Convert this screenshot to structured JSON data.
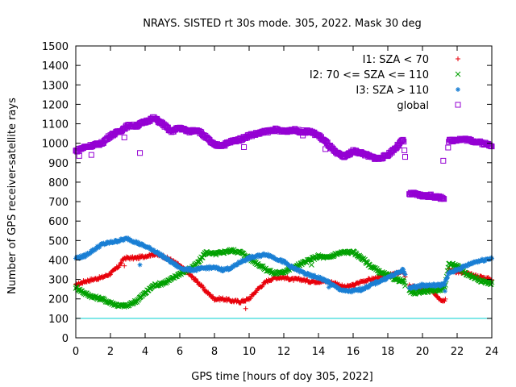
{
  "chart_data": {
    "type": "scatter",
    "title": "NRAYS. SISTED rt 30s mode. 305, 2022. Mask 30 deg",
    "xlabel": "GPS time [hours of doy 305, 2022]",
    "ylabel": "Number of GPS receiver-satellite rays",
    "xlim": [
      0,
      24
    ],
    "ylim": [
      0,
      1500
    ],
    "xticks": [
      0,
      2,
      4,
      6,
      8,
      10,
      12,
      14,
      16,
      18,
      20,
      22,
      24
    ],
    "yticks": [
      0,
      100,
      200,
      300,
      400,
      500,
      600,
      700,
      800,
      900,
      1000,
      1100,
      1200,
      1300,
      1400,
      1500
    ],
    "grid": false,
    "legend_position": "top-right",
    "reference_line": {
      "y": 100,
      "color": "#00d0d0"
    },
    "gap": [
      19.0,
      19.2
    ],
    "series": [
      {
        "name": "I1: SZA < 70",
        "marker": "plus",
        "color": "#e8000b",
        "x": [
          0,
          0.5,
          1,
          1.5,
          2,
          2.5,
          2.8,
          3.5,
          4,
          4.5,
          5,
          5.5,
          6,
          6.5,
          7,
          7.5,
          8,
          8.5,
          9,
          9.5,
          10,
          10.5,
          11,
          11.5,
          12,
          12.5,
          13,
          13.5,
          14,
          14.5,
          15,
          15.5,
          16,
          16.5,
          17,
          17.5,
          18,
          18.5,
          18.9,
          19.2,
          19.5,
          20,
          20.5,
          21,
          21.3,
          21.5,
          22,
          22.5,
          23,
          23.5,
          24
        ],
        "y": [
          270,
          290,
          300,
          310,
          330,
          370,
          410,
          410,
          420,
          430,
          420,
          400,
          370,
          330,
          290,
          240,
          200,
          200,
          190,
          185,
          200,
          250,
          290,
          310,
          310,
          300,
          300,
          290,
          290,
          290,
          280,
          260,
          270,
          290,
          300,
          310,
          320,
          330,
          340,
          270,
          260,
          250,
          250,
          200,
          190,
          350,
          340,
          330,
          320,
          310,
          300
        ]
      },
      {
        "name": "I2: 70 <= SZA <= 110",
        "marker": "cross",
        "color": "#00a000",
        "x": [
          0,
          0.5,
          1,
          1.5,
          2,
          2.5,
          3,
          3.5,
          4,
          4.5,
          5,
          5.5,
          6,
          6.5,
          7,
          7.5,
          8,
          8.5,
          9,
          9.5,
          10,
          10.5,
          11,
          11.5,
          12,
          12.5,
          13,
          13.5,
          14,
          14.5,
          15,
          15.5,
          16,
          16.5,
          17,
          17.5,
          18,
          18.5,
          18.9,
          19.2,
          19.5,
          20,
          20.5,
          21,
          21.3,
          21.5,
          22,
          22.5,
          23,
          23.5,
          24
        ],
        "y": [
          260,
          230,
          210,
          200,
          180,
          165,
          165,
          190,
          230,
          270,
          280,
          300,
          330,
          350,
          380,
          440,
          430,
          440,
          450,
          440,
          410,
          380,
          350,
          330,
          340,
          360,
          380,
          400,
          420,
          410,
          430,
          440,
          440,
          410,
          370,
          340,
          320,
          300,
          290,
          240,
          230,
          240,
          240,
          250,
          260,
          380,
          370,
          330,
          310,
          290,
          280
        ]
      },
      {
        "name": "I3: SZA > 110",
        "marker": "star",
        "color": "#1a7fd4",
        "x": [
          0,
          0.5,
          1,
          1.5,
          2,
          2.5,
          3,
          3.5,
          4,
          4.5,
          5,
          5.5,
          6,
          6.5,
          7,
          7.5,
          8,
          8.5,
          9,
          9.5,
          10,
          10.5,
          11,
          11.5,
          12,
          12.5,
          13,
          13.5,
          14,
          14.5,
          15,
          15.5,
          16,
          16.5,
          17,
          17.5,
          18,
          18.5,
          18.9,
          19.2,
          19.5,
          20,
          20.5,
          21,
          21.3,
          21.5,
          22,
          22.5,
          23,
          23.5,
          24
        ],
        "y": [
          410,
          420,
          450,
          480,
          490,
          500,
          510,
          490,
          470,
          450,
          420,
          390,
          360,
          350,
          350,
          360,
          360,
          350,
          360,
          390,
          410,
          420,
          430,
          410,
          390,
          360,
          340,
          320,
          310,
          290,
          260,
          240,
          240,
          250,
          270,
          290,
          310,
          330,
          350,
          260,
          260,
          270,
          270,
          270,
          280,
          330,
          350,
          370,
          390,
          400,
          410
        ]
      },
      {
        "name": "global",
        "marker": "square",
        "color": "#9400d3",
        "x": [
          0,
          0.5,
          1,
          1.5,
          2,
          2.5,
          3,
          3.5,
          4,
          4.5,
          5,
          5.5,
          6,
          6.5,
          7,
          7.5,
          8,
          8.5,
          9,
          9.5,
          10,
          10.5,
          11,
          11.5,
          12,
          12.5,
          13,
          13.5,
          14,
          14.5,
          15,
          15.5,
          16,
          16.5,
          17,
          17.5,
          18,
          18.5,
          18.9,
          19.2,
          19.5,
          20,
          20.5,
          21,
          21.3,
          21.5,
          22,
          22.5,
          23,
          23.5,
          24
        ],
        "y": [
          960,
          980,
          990,
          1000,
          1040,
          1060,
          1090,
          1090,
          1110,
          1130,
          1100,
          1060,
          1080,
          1060,
          1070,
          1030,
          990,
          990,
          1010,
          1020,
          1040,
          1050,
          1060,
          1070,
          1060,
          1070,
          1060,
          1060,
          1040,
          1000,
          950,
          930,
          960,
          950,
          930,
          920,
          940,
          980,
          1020,
          740,
          740,
          730,
          730,
          720,
          720,
          1010,
          1020,
          1020,
          1010,
          1000,
          990
        ]
      }
    ],
    "outliers": [
      {
        "series": "global",
        "x": 0.2,
        "y": 935
      },
      {
        "series": "global",
        "x": 0.9,
        "y": 940
      },
      {
        "series": "global",
        "x": 2.8,
        "y": 1030
      },
      {
        "series": "global",
        "x": 3.7,
        "y": 950
      },
      {
        "series": "global",
        "x": 9.7,
        "y": 980
      },
      {
        "series": "global",
        "x": 13.1,
        "y": 1040
      },
      {
        "series": "global",
        "x": 14.4,
        "y": 970
      },
      {
        "series": "global",
        "x": 21.2,
        "y": 910
      },
      {
        "series": "I1: SZA < 70",
        "x": 2.8,
        "y": 370
      },
      {
        "series": "I1: SZA < 70",
        "x": 9.8,
        "y": 150
      },
      {
        "series": "I2: 70 <= SZA <= 110",
        "x": 13.6,
        "y": 375
      },
      {
        "series": "I3: SZA > 110",
        "x": 3.7,
        "y": 375
      },
      {
        "series": "I3: SZA > 110",
        "x": 14.6,
        "y": 260
      },
      {
        "series": "I3: SZA > 110",
        "x": 21.3,
        "y": 240
      }
    ]
  }
}
